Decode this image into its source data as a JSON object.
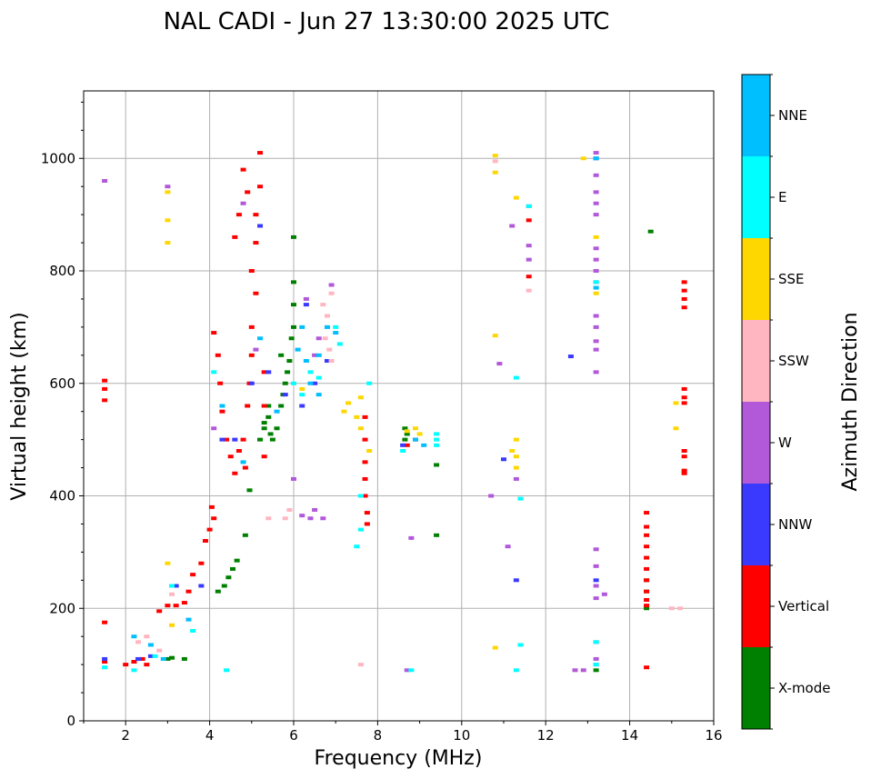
{
  "chart_data": {
    "type": "scatter",
    "title": "NAL CADI - Jun 27 13:30:00 2025 UTC",
    "xlabel": "Frequency (MHz)",
    "ylabel": "Virtual height (km)",
    "xlim": [
      1,
      16
    ],
    "ylim": [
      0,
      1120
    ],
    "xticks": [
      2,
      4,
      6,
      8,
      10,
      12,
      14,
      16
    ],
    "yticks": [
      0,
      200,
      400,
      600,
      800,
      1000
    ],
    "grid": true,
    "colorbar": {
      "title": "Azimuth Direction",
      "categories": [
        {
          "label": "X-mode",
          "color": "#008000"
        },
        {
          "label": "Vertical",
          "color": "#ff0000"
        },
        {
          "label": "NNW",
          "color": "#3a3aff"
        },
        {
          "label": "W",
          "color": "#b159d9"
        },
        {
          "label": "SSW",
          "color": "#ffb6c1"
        },
        {
          "label": "SSE",
          "color": "#ffd700"
        },
        {
          "label": "E",
          "color": "#00ffff"
        },
        {
          "label": "NNE",
          "color": "#00bfff"
        }
      ]
    },
    "series": [
      {
        "name": "X-mode",
        "points": [
          [
            3.0,
            110
          ],
          [
            3.1,
            112
          ],
          [
            3.4,
            110
          ],
          [
            4.2,
            230
          ],
          [
            4.35,
            240
          ],
          [
            4.45,
            255
          ],
          [
            4.55,
            270
          ],
          [
            4.65,
            285
          ],
          [
            4.85,
            330
          ],
          [
            4.95,
            410
          ],
          [
            5.2,
            500
          ],
          [
            5.3,
            520
          ],
          [
            5.4,
            540
          ],
          [
            5.5,
            500
          ],
          [
            5.6,
            520
          ],
          [
            5.7,
            560
          ],
          [
            5.8,
            600
          ],
          [
            5.9,
            640
          ],
          [
            5.95,
            680
          ],
          [
            6.0,
            700
          ],
          [
            6.0,
            740
          ],
          [
            6.0,
            780
          ],
          [
            6.0,
            860
          ],
          [
            5.85,
            620
          ],
          [
            5.7,
            650
          ],
          [
            5.75,
            580
          ],
          [
            5.4,
            560
          ],
          [
            5.3,
            530
          ],
          [
            5.45,
            510
          ],
          [
            8.65,
            520
          ],
          [
            8.7,
            510
          ],
          [
            8.65,
            500
          ],
          [
            9.4,
            455
          ],
          [
            9.4,
            330
          ],
          [
            13.2,
            90
          ],
          [
            14.4,
            200
          ],
          [
            14.4,
            230
          ],
          [
            14.4,
            250
          ],
          [
            14.5,
            870
          ]
        ]
      },
      {
        "name": "Vertical",
        "points": [
          [
            1.5,
            105
          ],
          [
            1.5,
            175
          ],
          [
            1.5,
            570
          ],
          [
            1.5,
            590
          ],
          [
            1.5,
            605
          ],
          [
            2.0,
            100
          ],
          [
            2.2,
            105
          ],
          [
            2.4,
            110
          ],
          [
            2.5,
            100
          ],
          [
            2.8,
            195
          ],
          [
            3.0,
            205
          ],
          [
            3.2,
            205
          ],
          [
            3.4,
            210
          ],
          [
            3.5,
            230
          ],
          [
            3.6,
            260
          ],
          [
            3.8,
            280
          ],
          [
            3.9,
            320
          ],
          [
            4.0,
            340
          ],
          [
            4.1,
            360
          ],
          [
            4.05,
            380
          ],
          [
            4.1,
            690
          ],
          [
            4.2,
            650
          ],
          [
            4.25,
            600
          ],
          [
            4.3,
            550
          ],
          [
            4.4,
            500
          ],
          [
            4.5,
            470
          ],
          [
            4.6,
            440
          ],
          [
            4.7,
            480
          ],
          [
            4.8,
            500
          ],
          [
            4.85,
            450
          ],
          [
            4.9,
            560
          ],
          [
            4.95,
            600
          ],
          [
            5.0,
            650
          ],
          [
            5.0,
            700
          ],
          [
            5.1,
            760
          ],
          [
            5.0,
            800
          ],
          [
            5.1,
            850
          ],
          [
            5.1,
            900
          ],
          [
            5.2,
            950
          ],
          [
            5.2,
            1010
          ],
          [
            4.7,
            900
          ],
          [
            4.8,
            980
          ],
          [
            4.9,
            940
          ],
          [
            4.6,
            860
          ],
          [
            5.3,
            620
          ],
          [
            5.3,
            560
          ],
          [
            5.3,
            470
          ],
          [
            7.7,
            540
          ],
          [
            7.7,
            500
          ],
          [
            7.7,
            460
          ],
          [
            7.7,
            430
          ],
          [
            7.7,
            400
          ],
          [
            7.75,
            370
          ],
          [
            7.75,
            350
          ],
          [
            8.7,
            490
          ],
          [
            8.9,
            500
          ],
          [
            11.6,
            790
          ],
          [
            11.6,
            890
          ],
          [
            14.4,
            370
          ],
          [
            14.4,
            345
          ],
          [
            14.4,
            330
          ],
          [
            14.4,
            310
          ],
          [
            14.4,
            290
          ],
          [
            14.4,
            270
          ],
          [
            14.4,
            250
          ],
          [
            14.4,
            230
          ],
          [
            14.4,
            215
          ],
          [
            14.4,
            205
          ],
          [
            14.4,
            95
          ],
          [
            15.3,
            780
          ],
          [
            15.3,
            765
          ],
          [
            15.3,
            750
          ],
          [
            15.3,
            735
          ],
          [
            15.3,
            590
          ],
          [
            15.3,
            575
          ],
          [
            15.3,
            565
          ],
          [
            15.3,
            480
          ],
          [
            15.3,
            470
          ],
          [
            15.3,
            445
          ],
          [
            15.3,
            440
          ]
        ]
      },
      {
        "name": "NNW",
        "points": [
          [
            1.5,
            110
          ],
          [
            2.3,
            110
          ],
          [
            2.6,
            115
          ],
          [
            3.2,
            240
          ],
          [
            3.8,
            240
          ],
          [
            4.3,
            500
          ],
          [
            4.6,
            500
          ],
          [
            5.0,
            600
          ],
          [
            5.2,
            880
          ],
          [
            5.4,
            620
          ],
          [
            5.8,
            580
          ],
          [
            6.2,
            560
          ],
          [
            6.3,
            740
          ],
          [
            6.5,
            600
          ],
          [
            6.8,
            640
          ],
          [
            8.6,
            490
          ],
          [
            11.0,
            465
          ],
          [
            11.3,
            250
          ],
          [
            13.2,
            1000
          ],
          [
            13.2,
            250
          ],
          [
            12.6,
            648
          ]
        ]
      },
      {
        "name": "W",
        "points": [
          [
            1.5,
            960
          ],
          [
            3.0,
            950
          ],
          [
            4.1,
            520
          ],
          [
            4.8,
            920
          ],
          [
            5.1,
            660
          ],
          [
            6.0,
            430
          ],
          [
            6.2,
            365
          ],
          [
            6.4,
            360
          ],
          [
            6.5,
            375
          ],
          [
            6.7,
            360
          ],
          [
            6.3,
            750
          ],
          [
            6.6,
            680
          ],
          [
            6.5,
            650
          ],
          [
            6.9,
            775
          ],
          [
            8.8,
            325
          ],
          [
            8.7,
            90
          ],
          [
            10.7,
            400
          ],
          [
            10.9,
            635
          ],
          [
            11.1,
            310
          ],
          [
            11.3,
            430
          ],
          [
            11.2,
            880
          ],
          [
            11.6,
            915
          ],
          [
            11.6,
            845
          ],
          [
            11.6,
            820
          ],
          [
            13.2,
            1010
          ],
          [
            13.2,
            970
          ],
          [
            13.2,
            940
          ],
          [
            13.2,
            920
          ],
          [
            13.2,
            900
          ],
          [
            13.2,
            840
          ],
          [
            13.2,
            820
          ],
          [
            13.2,
            800
          ],
          [
            13.2,
            780
          ],
          [
            13.2,
            720
          ],
          [
            13.2,
            700
          ],
          [
            13.2,
            675
          ],
          [
            13.2,
            660
          ],
          [
            13.2,
            620
          ],
          [
            13.2,
            305
          ],
          [
            13.2,
            275
          ],
          [
            13.2,
            240
          ],
          [
            13.2,
            218
          ],
          [
            13.4,
            225
          ],
          [
            13.2,
            140
          ],
          [
            13.2,
            110
          ],
          [
            13.2,
            100
          ],
          [
            12.7,
            90
          ],
          [
            12.9,
            90
          ]
        ]
      },
      {
        "name": "SSW",
        "points": [
          [
            2.3,
            140
          ],
          [
            2.5,
            150
          ],
          [
            2.8,
            125
          ],
          [
            3.1,
            225
          ],
          [
            5.4,
            360
          ],
          [
            5.9,
            375
          ],
          [
            5.8,
            360
          ],
          [
            6.8,
            700
          ],
          [
            6.8,
            720
          ],
          [
            6.9,
            760
          ],
          [
            6.7,
            740
          ],
          [
            6.75,
            680
          ],
          [
            6.85,
            660
          ],
          [
            6.9,
            640
          ],
          [
            7.6,
            100
          ],
          [
            10.8,
            995
          ],
          [
            15.0,
            200
          ],
          [
            15.2,
            200
          ],
          [
            11.6,
            765
          ]
        ]
      },
      {
        "name": "SSE",
        "points": [
          [
            3.0,
            850
          ],
          [
            3.0,
            890
          ],
          [
            3.0,
            940
          ],
          [
            3.0,
            280
          ],
          [
            3.1,
            170
          ],
          [
            6.2,
            590
          ],
          [
            7.2,
            550
          ],
          [
            7.3,
            565
          ],
          [
            7.5,
            540
          ],
          [
            7.6,
            520
          ],
          [
            7.8,
            480
          ],
          [
            7.6,
            575
          ],
          [
            8.7,
            515
          ],
          [
            8.9,
            520
          ],
          [
            9.0,
            510
          ],
          [
            10.8,
            1005
          ],
          [
            10.8,
            975
          ],
          [
            10.8,
            685
          ],
          [
            11.2,
            480
          ],
          [
            11.3,
            500
          ],
          [
            11.3,
            470
          ],
          [
            11.3,
            450
          ],
          [
            11.3,
            930
          ],
          [
            10.8,
            130
          ],
          [
            13.2,
            860
          ],
          [
            13.2,
            760
          ],
          [
            12.9,
            1000
          ],
          [
            15.1,
            565
          ],
          [
            15.1,
            520
          ]
        ]
      },
      {
        "name": "E",
        "points": [
          [
            1.5,
            95
          ],
          [
            2.2,
            90
          ],
          [
            2.7,
            115
          ],
          [
            3.1,
            240
          ],
          [
            3.6,
            160
          ],
          [
            4.4,
            90
          ],
          [
            4.1,
            620
          ],
          [
            6.0,
            600
          ],
          [
            6.2,
            580
          ],
          [
            6.4,
            620
          ],
          [
            6.6,
            610
          ],
          [
            7.0,
            700
          ],
          [
            7.1,
            670
          ],
          [
            7.6,
            400
          ],
          [
            7.8,
            600
          ],
          [
            7.5,
            310
          ],
          [
            7.6,
            340
          ],
          [
            8.6,
            480
          ],
          [
            9.4,
            490
          ],
          [
            9.4,
            500
          ],
          [
            9.4,
            510
          ],
          [
            11.3,
            610
          ],
          [
            11.3,
            90
          ],
          [
            11.4,
            395
          ],
          [
            11.4,
            135
          ],
          [
            13.2,
            780
          ],
          [
            13.2,
            140
          ],
          [
            13.2,
            100
          ],
          [
            11.6,
            915
          ],
          [
            8.8,
            90
          ]
        ]
      },
      {
        "name": "NNE",
        "points": [
          [
            2.2,
            150
          ],
          [
            2.6,
            135
          ],
          [
            2.9,
            110
          ],
          [
            3.5,
            180
          ],
          [
            4.3,
            560
          ],
          [
            4.8,
            460
          ],
          [
            5.2,
            680
          ],
          [
            5.6,
            550
          ],
          [
            6.1,
            660
          ],
          [
            6.2,
            700
          ],
          [
            6.3,
            640
          ],
          [
            6.4,
            600
          ],
          [
            6.6,
            580
          ],
          [
            6.8,
            700
          ],
          [
            6.6,
            650
          ],
          [
            7.0,
            690
          ],
          [
            8.9,
            500
          ],
          [
            9.1,
            490
          ],
          [
            13.2,
            1000
          ],
          [
            13.2,
            770
          ]
        ]
      }
    ]
  }
}
